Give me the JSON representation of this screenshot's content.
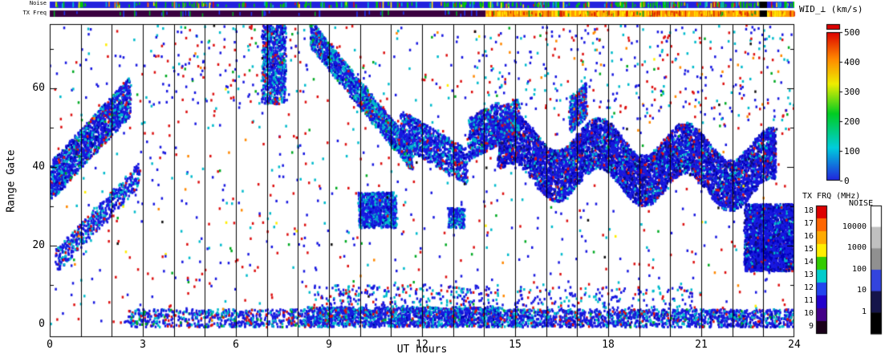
{
  "strips": {
    "noise": {
      "label": "Noise",
      "base_color": "#2222dd",
      "speck_colors": [
        [
          "#00cc00",
          0.55
        ],
        [
          "#00bbcc",
          0.15
        ],
        [
          "#ffee00",
          0.12
        ],
        [
          "#dd1111",
          0.12
        ],
        [
          "#ff8800",
          0.06
        ]
      ],
      "speck_count": 220,
      "speck_count_right": 120,
      "gap_t": [
        22.88,
        23.12
      ],
      "gap_color": "#000000"
    },
    "txfreq": {
      "label": "TX Freq",
      "segments": [
        {
          "t": [
            0,
            14.05
          ],
          "color": "#3a0040"
        },
        {
          "t": [
            14.05,
            24
          ],
          "color": "#ff9900"
        }
      ],
      "speck_colors_left": [
        [
          "#2233ee",
          0.7
        ],
        [
          "#00aa22",
          0.3
        ]
      ],
      "speck_count_left": 45,
      "speck_colors_right": [
        [
          "#ffee00",
          0.45
        ],
        [
          "#dd2200",
          0.3
        ],
        [
          "#cc6600",
          0.15
        ],
        [
          "#00aa22",
          0.1
        ]
      ],
      "speck_count_right": 240,
      "gap_t": [
        22.88,
        23.12
      ],
      "gap_color": "#000000"
    }
  },
  "chart_data": {
    "type": "heatmap",
    "title": "",
    "xlabel": "UT hours",
    "ylabel": "Range Gate",
    "xlim": [
      0,
      24
    ],
    "ylim": [
      0,
      76
    ],
    "x_ticks": [
      "0",
      "3",
      "6",
      "9",
      "12",
      "15",
      "18",
      "21",
      "24"
    ],
    "y_ticks": [
      "0",
      "20",
      "40",
      "60"
    ],
    "grid": "vertical black line every 1 hour",
    "colorbars": {
      "wid": {
        "label": "WID_⊥ (km/s)",
        "ticks": [
          "500",
          "400",
          "300",
          "200",
          "100",
          "0"
        ],
        "gradient_bottom_to_top": [
          "#2222dd",
          "#00ccdd",
          "#00cc22",
          "#eeee00",
          "#ff8800",
          "#dd0000"
        ],
        "overflow_cap_color": "#dd0000"
      },
      "txfrq": {
        "label": "TX FRQ (MHz)",
        "ticks": [
          "18",
          "17",
          "16",
          "15",
          "14",
          "13",
          "12",
          "11",
          "10",
          "9"
        ],
        "segment_colors_top_to_bottom": [
          "#dd0000",
          "#ff6600",
          "#ffaa00",
          "#ffee00",
          "#33cc00",
          "#00cccc",
          "#2244ee",
          "#2200cc",
          "#440088",
          "#1a001a"
        ]
      },
      "noise": {
        "label": "NOISE",
        "ticks": [
          "10000",
          "1000",
          "100",
          "10",
          "1"
        ],
        "segment_colors_top_to_bottom": [
          "#ffffff",
          "#c0c0c0",
          "#909090",
          "#3344dd",
          "#15154a",
          "#000000"
        ]
      }
    },
    "representation": "dense scatter-echo regions approximated as point clusters; t in UT hours, g in range gates",
    "clusters": [
      {
        "name": "dawn-band-upper",
        "t": [
          0.0,
          2.6
        ],
        "g": [
          36,
          58
        ],
        "th": 10,
        "n": 1500,
        "colors": [
          [
            "#1818e0",
            0.6
          ],
          [
            "#0000b0",
            0.12
          ],
          [
            "#00bbcc",
            0.2
          ],
          [
            "#dd1111",
            0.05
          ],
          [
            "#00aa22",
            0.03
          ]
        ]
      },
      {
        "name": "dawn-band-lower",
        "t": [
          0.2,
          2.9
        ],
        "g": [
          16,
          38
        ],
        "th": 6,
        "n": 550,
        "colors": [
          [
            "#1818e0",
            0.62
          ],
          [
            "#00bbcc",
            0.25
          ],
          [
            "#dd1111",
            0.08
          ],
          [
            "#0000b0",
            0.05
          ]
        ]
      },
      {
        "name": "morning-cluster-high",
        "t": [
          6.85,
          7.6
        ],
        "g": [
          66,
          66
        ],
        "th": 20,
        "n": 800,
        "colors": [
          [
            "#1818e0",
            0.55
          ],
          [
            "#00bbcc",
            0.3
          ],
          [
            "#0000b0",
            0.1
          ],
          [
            "#dd1111",
            0.05
          ]
        ]
      },
      {
        "name": "descending-band",
        "t": [
          8.4,
          11.7
        ],
        "g": [
          74,
          42
        ],
        "th": 7,
        "n": 1700,
        "colors": [
          [
            "#1818e0",
            0.5
          ],
          [
            "#00bbcc",
            0.34
          ],
          [
            "#0000b0",
            0.08
          ],
          [
            "#dd1111",
            0.05
          ],
          [
            "#00aa22",
            0.03
          ]
        ]
      },
      {
        "name": "midday-blob",
        "t": [
          9.95,
          11.15
        ],
        "g": [
          29,
          29
        ],
        "th": 9,
        "n": 900,
        "colors": [
          [
            "#1818e0",
            0.62
          ],
          [
            "#00bbcc",
            0.3
          ],
          [
            "#0000b0",
            0.08
          ]
        ]
      },
      {
        "name": "midday-band",
        "t": [
          11.3,
          13.45
        ],
        "g": [
          50,
          40
        ],
        "th": 9,
        "n": 1000,
        "colors": [
          [
            "#1818e0",
            0.6
          ],
          [
            "#00bbcc",
            0.25
          ],
          [
            "#0000b0",
            0.1
          ],
          [
            "#dd1111",
            0.05
          ]
        ]
      },
      {
        "name": "small-cluster-13h",
        "t": [
          12.85,
          13.35
        ],
        "g": [
          27,
          27
        ],
        "th": 5,
        "n": 200,
        "colors": [
          [
            "#1818e0",
            0.7
          ],
          [
            "#00bbcc",
            0.3
          ]
        ]
      },
      {
        "name": "afternoon-cluster",
        "t": [
          13.5,
          14.45
        ],
        "g": [
          47,
          51
        ],
        "th": 11,
        "n": 650,
        "colors": [
          [
            "#1818e0",
            0.6
          ],
          [
            "#00bbcc",
            0.22
          ],
          [
            "#0000b0",
            0.12
          ],
          [
            "#dd1111",
            0.06
          ]
        ]
      },
      {
        "name": "evening-main-band",
        "t": [
          14.45,
          23.4
        ],
        "g": [
          43,
          39
        ],
        "th": 13,
        "n": 7500,
        "wave": {
          "amp": 4.5,
          "cycles": 3.2,
          "phase": 0.5
        },
        "colors": [
          [
            "#1818e0",
            0.6
          ],
          [
            "#0000b8",
            0.17
          ],
          [
            "#101070",
            0.08
          ],
          [
            "#00bbcc",
            0.1
          ],
          [
            "#dd1111",
            0.05
          ]
        ]
      },
      {
        "name": "evening-spur-15h",
        "t": [
          14.5,
          15.15
        ],
        "g": [
          51,
          53
        ],
        "th": 9,
        "n": 300,
        "colors": [
          [
            "#1818e0",
            0.6
          ],
          [
            "#00bbcc",
            0.25
          ],
          [
            "#dd1111",
            0.15
          ]
        ]
      },
      {
        "name": "evening-spur-17h",
        "t": [
          16.75,
          17.3
        ],
        "g": [
          53,
          57
        ],
        "th": 9,
        "n": 320,
        "colors": [
          [
            "#1818e0",
            0.65
          ],
          [
            "#00bbcc",
            0.25
          ],
          [
            "#dd1111",
            0.1
          ]
        ]
      },
      {
        "name": "late-block",
        "t": [
          22.4,
          24.0
        ],
        "g": [
          22,
          22
        ],
        "th": 17,
        "n": 2800,
        "colors": [
          [
            "#1818e0",
            0.62
          ],
          [
            "#0000b8",
            0.2
          ],
          [
            "#101070",
            0.08
          ],
          [
            "#00bbcc",
            0.08
          ],
          [
            "#dd1111",
            0.02
          ]
        ]
      },
      {
        "name": "ground-band-early",
        "t": [
          2.5,
          8.3
        ],
        "g": [
          1.5,
          1.5
        ],
        "th": 4.5,
        "n": 650,
        "colors": [
          [
            "#1818e0",
            0.62
          ],
          [
            "#00bbcc",
            0.22
          ],
          [
            "#dd1111",
            0.1
          ],
          [
            "#00aa22",
            0.06
          ]
        ]
      },
      {
        "name": "ground-band-mid",
        "t": [
          8.3,
          14.6
        ],
        "g": [
          1.8,
          1.8
        ],
        "th": 5,
        "n": 1700,
        "colors": [
          [
            "#1818e0",
            0.6
          ],
          [
            "#00bbcc",
            0.25
          ],
          [
            "#0000b0",
            0.08
          ],
          [
            "#dd1111",
            0.05
          ],
          [
            "#00aa22",
            0.02
          ]
        ]
      },
      {
        "name": "ground-band-late",
        "t": [
          14.6,
          24.0
        ],
        "g": [
          1.5,
          1.5
        ],
        "th": 4.5,
        "n": 1500,
        "colors": [
          [
            "#1818e0",
            0.62
          ],
          [
            "#00bbcc",
            0.22
          ],
          [
            "#0000b0",
            0.08
          ],
          [
            "#dd1111",
            0.06
          ],
          [
            "#00aa22",
            0.02
          ]
        ]
      },
      {
        "name": "ground-speckle-mid",
        "t": [
          8.5,
          14.5
        ],
        "g": [
          6,
          6
        ],
        "th": 8,
        "n": 350,
        "colors": [
          [
            "#1818e0",
            0.55
          ],
          [
            "#00bbcc",
            0.3
          ],
          [
            "#dd1111",
            0.15
          ]
        ]
      },
      {
        "name": "ground-speckle-late",
        "t": [
          15.0,
          21.0
        ],
        "g": [
          6,
          6
        ],
        "th": 7,
        "n": 200,
        "colors": [
          [
            "#1818e0",
            0.6
          ],
          [
            "#00bbcc",
            0.25
          ],
          [
            "#dd1111",
            0.15
          ]
        ]
      },
      {
        "name": "upper-speckle-evening",
        "t": [
          14.0,
          24.0
        ],
        "g": [
          64,
          64
        ],
        "th": 24,
        "n": 280,
        "colors": [
          [
            "#1818e0",
            0.45
          ],
          [
            "#dd1111",
            0.25
          ],
          [
            "#00bbcc",
            0.2
          ],
          [
            "#00aa22",
            0.05
          ],
          [
            "#ff8800",
            0.05
          ]
        ]
      },
      {
        "name": "upper-speckle-early",
        "t": [
          3.0,
          8.5
        ],
        "g": [
          66,
          66
        ],
        "th": 20,
        "n": 120,
        "colors": [
          [
            "#1818e0",
            0.4
          ],
          [
            "#dd1111",
            0.3
          ],
          [
            "#00bbcc",
            0.2
          ],
          [
            "#00aa22",
            0.1
          ]
        ]
      }
    ],
    "scatter": {
      "n": 1000,
      "colors": [
        [
          "#dd1111",
          0.3
        ],
        [
          "#1818e0",
          0.36
        ],
        [
          "#00bbcc",
          0.2
        ],
        [
          "#00aa22",
          0.06
        ],
        [
          "#ff8800",
          0.04
        ],
        [
          "#ffee00",
          0.02
        ],
        [
          "#101010",
          0.02
        ]
      ]
    }
  }
}
